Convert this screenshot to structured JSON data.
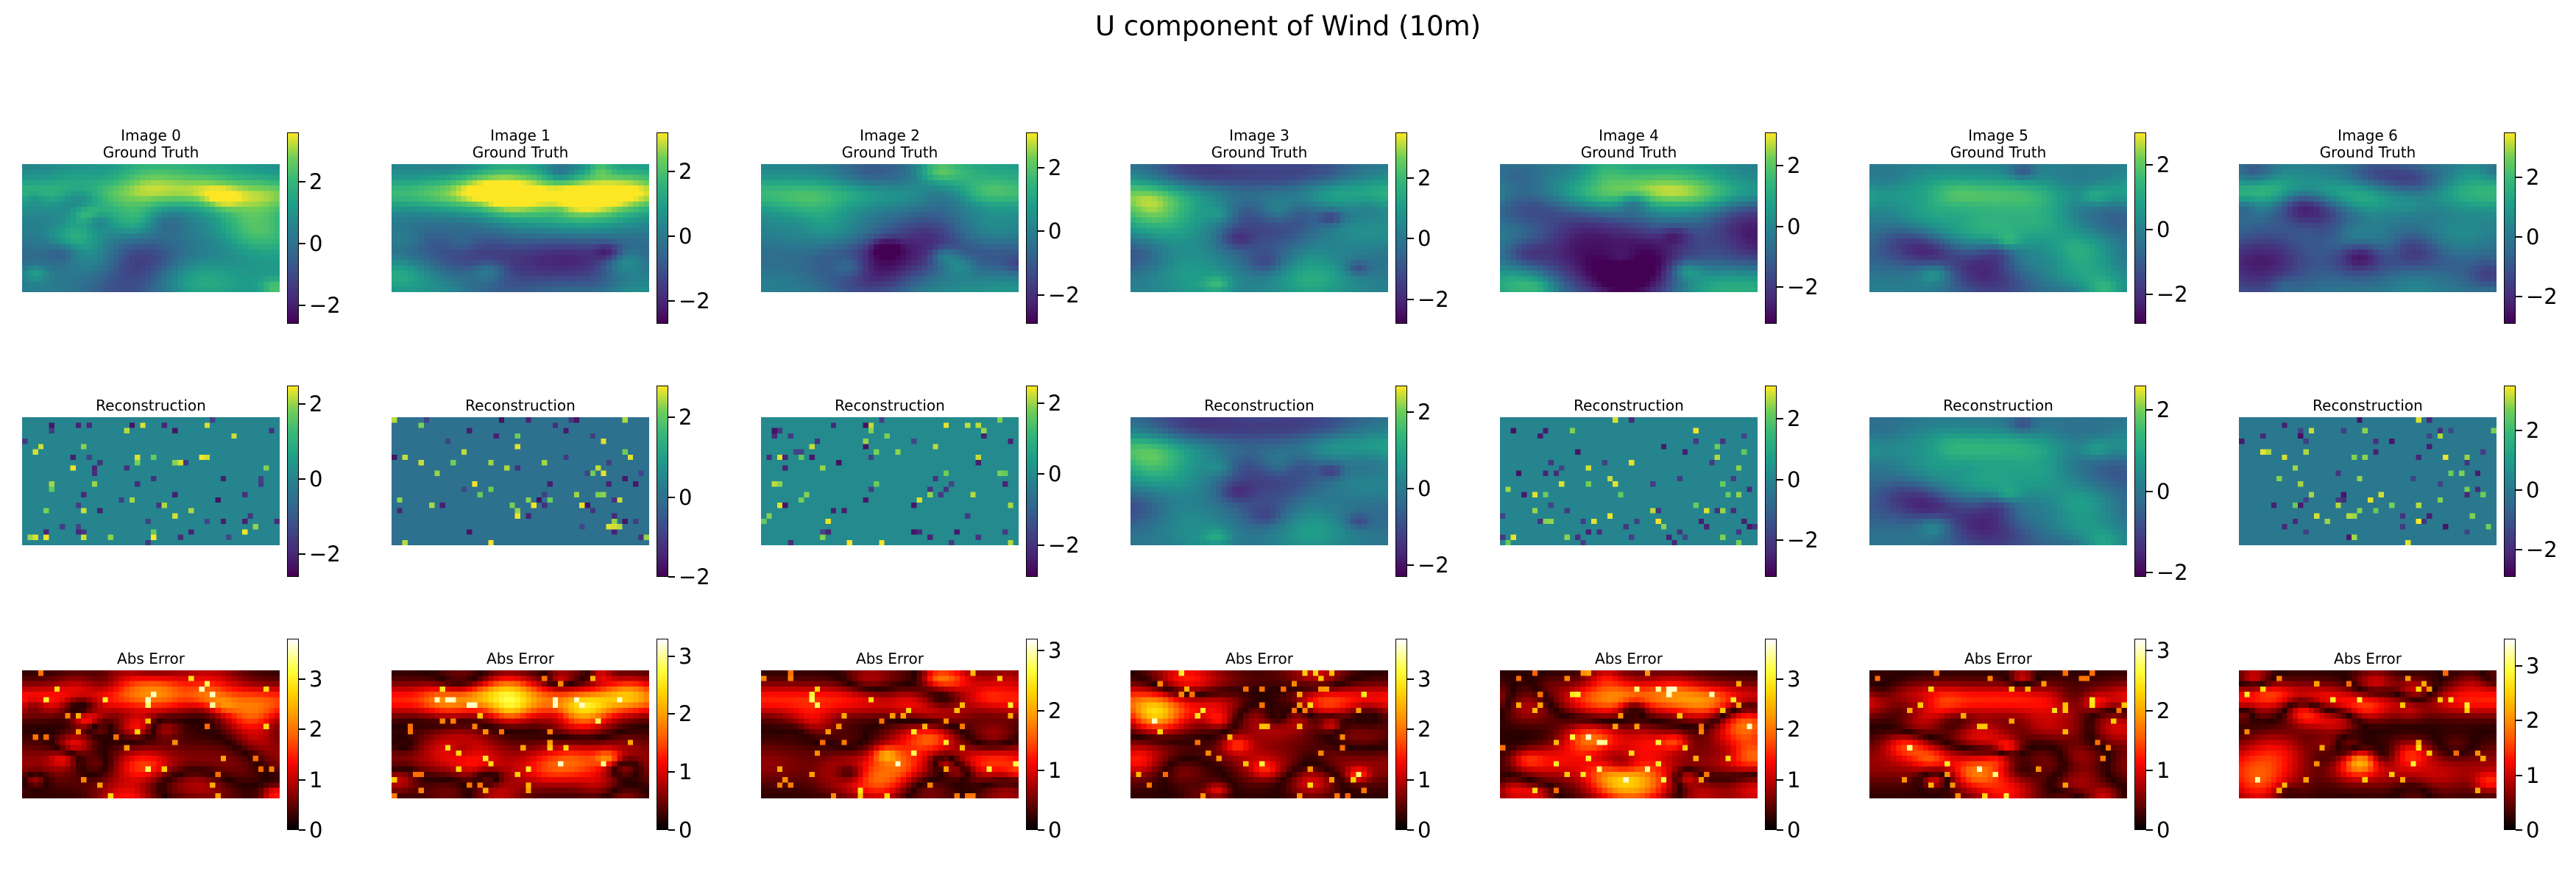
{
  "figure": {
    "suptitle": "U component of Wind (10m)"
  },
  "chart_data": {
    "type": "heatmap",
    "title": "U component of Wind (10m)",
    "grid": false,
    "rows": [
      {
        "name": "Ground Truth",
        "colormap": "viridis"
      },
      {
        "name": "Reconstruction",
        "colormap": "viridis"
      },
      {
        "name": "Abs Error",
        "colormap": "hot"
      }
    ],
    "columns": [
      "Image 0",
      "Image 1",
      "Image 2",
      "Image 3",
      "Image 4",
      "Image 5",
      "Image 6"
    ],
    "panels": [
      [
        {
          "title": "Image 0\nGround Truth",
          "vmin": -2.6,
          "vmax": 3.6,
          "ticks": [
            -2,
            0,
            2
          ]
        },
        {
          "title": "Image 1\nGround Truth",
          "vmin": -2.7,
          "vmax": 3.2,
          "ticks": [
            -2,
            0,
            2
          ]
        },
        {
          "title": "Image 2\nGround Truth",
          "vmin": -2.9,
          "vmax": 3.1,
          "ticks": [
            -2,
            0,
            2
          ]
        },
        {
          "title": "Image 3\nGround Truth",
          "vmin": -2.8,
          "vmax": 3.5,
          "ticks": [
            -2,
            0,
            2
          ]
        },
        {
          "title": "Image 4\nGround Truth",
          "vmin": -3.2,
          "vmax": 3.1,
          "ticks": [
            -2,
            0,
            2
          ]
        },
        {
          "title": "Image 5\nGround Truth",
          "vmin": -2.9,
          "vmax": 3.0,
          "ticks": [
            -2,
            0,
            2
          ]
        },
        {
          "title": "Image 6\nGround Truth",
          "vmin": -2.9,
          "vmax": 3.5,
          "ticks": [
            -2,
            0,
            2
          ]
        }
      ],
      [
        {
          "title": "Reconstruction",
          "vmin": -2.6,
          "vmax": 2.5,
          "ticks": [
            -2,
            0,
            2
          ]
        },
        {
          "title": "Reconstruction",
          "vmin": -2.0,
          "vmax": 2.8,
          "ticks": [
            -2,
            0,
            2
          ]
        },
        {
          "title": "Reconstruction",
          "vmin": -2.9,
          "vmax": 2.5,
          "ticks": [
            -2,
            0,
            2
          ]
        },
        {
          "title": "Reconstruction",
          "vmin": -2.3,
          "vmax": 2.7,
          "ticks": [
            -2,
            0,
            2
          ]
        },
        {
          "title": "Reconstruction",
          "vmin": -3.2,
          "vmax": 3.1,
          "ticks": [
            -2,
            0,
            2
          ]
        },
        {
          "title": "Reconstruction",
          "vmin": -2.1,
          "vmax": 2.6,
          "ticks": [
            -2,
            0,
            2
          ]
        },
        {
          "title": "Reconstruction",
          "vmin": -2.9,
          "vmax": 3.5,
          "ticks": [
            -2,
            0,
            2
          ]
        }
      ],
      [
        {
          "title": "Abs Error",
          "vmin": 0,
          "vmax": 3.8,
          "ticks": [
            0,
            1,
            2,
            3
          ]
        },
        {
          "title": "Abs Error",
          "vmin": 0,
          "vmax": 3.3,
          "ticks": [
            0,
            1,
            2,
            3
          ]
        },
        {
          "title": "Abs Error",
          "vmin": 0,
          "vmax": 3.2,
          "ticks": [
            0,
            1,
            2,
            3
          ]
        },
        {
          "title": "Abs Error",
          "vmin": 0,
          "vmax": 3.8,
          "ticks": [
            0,
            1,
            2,
            3
          ]
        },
        {
          "title": "Abs Error",
          "vmin": 0,
          "vmax": 3.8,
          "ticks": [
            0,
            1,
            2,
            3
          ]
        },
        {
          "title": "Abs Error",
          "vmin": 0,
          "vmax": 3.2,
          "ticks": [
            0,
            1,
            2,
            3
          ]
        },
        {
          "title": "Abs Error",
          "vmin": 0,
          "vmax": 3.5,
          "ticks": [
            0,
            1,
            2,
            3
          ]
        }
      ]
    ]
  }
}
